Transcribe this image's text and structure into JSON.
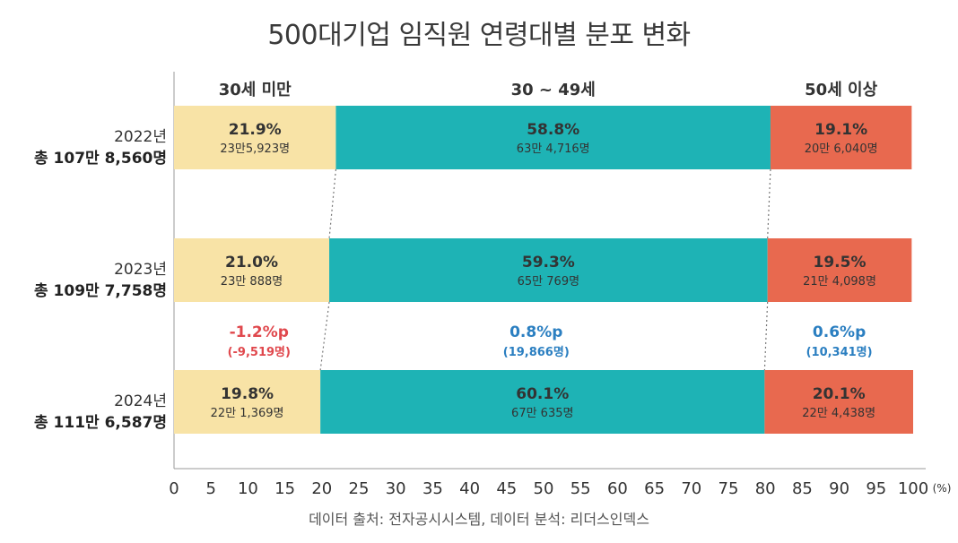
{
  "chart_data": {
    "type": "bar",
    "stacked": true,
    "orientation": "horizontal",
    "title": "500대기업 임직원 연령대별 분포 변화",
    "source": "데이터 출처: 전자공시시스템, 데이터 분석: 리더스인덱스",
    "x_unit": "(%)",
    "xlim": [
      0,
      100
    ],
    "x_ticks": [
      0,
      5,
      10,
      15,
      20,
      25,
      30,
      35,
      40,
      45,
      50,
      55,
      60,
      65,
      70,
      75,
      80,
      85,
      90,
      95,
      100
    ],
    "grid": false,
    "categories": [
      {
        "year": "2022년",
        "total": "총 107만 8,560명"
      },
      {
        "year": "2023년",
        "total": "총 109만 7,758명"
      },
      {
        "year": "2024년",
        "total": "총 111만 6,587명"
      }
    ],
    "series": [
      {
        "name": "30세 미만",
        "color": "#F8E3A6",
        "values": [
          21.9,
          21.0,
          19.8
        ],
        "labels": [
          "21.9%",
          "21.0%",
          "19.8%"
        ],
        "counts": [
          "23만5,923명",
          "23만 888명",
          "22만 1,369명"
        ]
      },
      {
        "name": "30 ~ 49세",
        "color": "#1EB3B5",
        "values": [
          58.8,
          59.3,
          60.1
        ],
        "labels": [
          "58.8%",
          "59.3%",
          "60.1%"
        ],
        "counts": [
          "63만 4,716명",
          "65만 769명",
          "67만 635명"
        ]
      },
      {
        "name": "50세 이상",
        "color": "#E8694F",
        "values": [
          19.1,
          19.5,
          20.1
        ],
        "labels": [
          "19.1%",
          "19.5%",
          "20.1%"
        ],
        "counts": [
          "20만 6,040명",
          "21만 4,098명",
          "22만 4,438명"
        ]
      }
    ],
    "changes": [
      {
        "value": "-1.2%p",
        "detail": "(-9,519명)",
        "color": "#E0484D"
      },
      {
        "value": "0.8%p",
        "detail": "(19,866명)",
        "color": "#2B7FC1"
      },
      {
        "value": "0.6%p",
        "detail": "(10,341명)",
        "color": "#2B7FC1"
      }
    ]
  }
}
